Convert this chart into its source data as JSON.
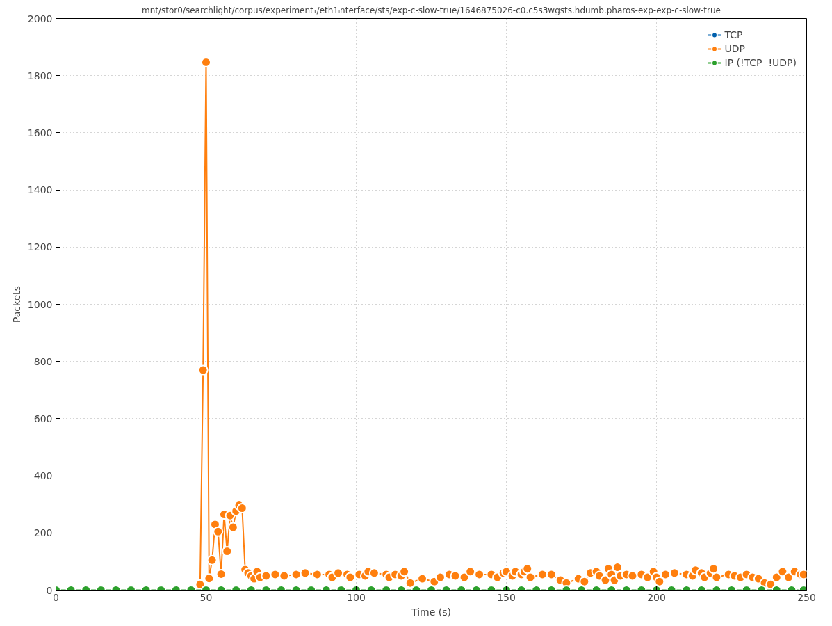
{
  "chart_data": {
    "type": "line",
    "title": "mnt/stor0/searchlight/corpus/experiment₁/eth1ᵢnterface/sts/exp-c-slow-true/1646875026-c0.c5s3wgsts.hdumb.pharos-exp-exp-c-slow-true",
    "xlabel": "Time (s)",
    "ylabel": "Packets",
    "xlim": [
      0,
      250
    ],
    "ylim": [
      0,
      2000
    ],
    "xticks": [
      0,
      50,
      100,
      150,
      200,
      250
    ],
    "yticks": [
      0,
      200,
      400,
      600,
      800,
      1000,
      1200,
      1400,
      1600,
      1800,
      2000
    ],
    "grid": true,
    "legend": "top right",
    "marker": "circle",
    "line_style": "solid",
    "series": [
      {
        "name": "TCP",
        "color": "#0060ad"
      },
      {
        "name": "UDP",
        "color": "#ff7f0e",
        "x": [
          48,
          49,
          50,
          51,
          52,
          53,
          54,
          55,
          56,
          57,
          58,
          59,
          60,
          61,
          62,
          63,
          64,
          65,
          66,
          67,
          68,
          70,
          73,
          76,
          80,
          83,
          87,
          91,
          92,
          94,
          97,
          98,
          101,
          103,
          104,
          106,
          110,
          111,
          113,
          115,
          116,
          118,
          122,
          126,
          128,
          131,
          133,
          136,
          138,
          141,
          145,
          147,
          149,
          150,
          152,
          153,
          155,
          156,
          157,
          158,
          162,
          165,
          168,
          170,
          174,
          176,
          178,
          180,
          181,
          183,
          184,
          185,
          186,
          187,
          188,
          190,
          192,
          195,
          197,
          199,
          200,
          201,
          203,
          206,
          210,
          212,
          213,
          215,
          216,
          218,
          219,
          220,
          224,
          226,
          228,
          230,
          232,
          234,
          236,
          238,
          240,
          242,
          244,
          246,
          248,
          249
        ],
        "values": [
          20,
          770,
          1847,
          41,
          105,
          230,
          205,
          56,
          265,
          136,
          261,
          220,
          277,
          297,
          287,
          72,
          60,
          50,
          40,
          65,
          45,
          50,
          55,
          50,
          55,
          60,
          55,
          55,
          45,
          60,
          55,
          45,
          55,
          50,
          65,
          60,
          55,
          45,
          55,
          50,
          65,
          25,
          40,
          30,
          45,
          55,
          50,
          45,
          65,
          55,
          55,
          45,
          60,
          65,
          50,
          65,
          55,
          65,
          75,
          45,
          55,
          55,
          35,
          25,
          40,
          30,
          60,
          65,
          50,
          35,
          75,
          55,
          35,
          80,
          50,
          55,
          50,
          55,
          45,
          65,
          45,
          30,
          55,
          60,
          55,
          50,
          70,
          60,
          45,
          60,
          75,
          45,
          55,
          50,
          45,
          55,
          45,
          40,
          25,
          20,
          45,
          65,
          45,
          65,
          55,
          55
        ]
      },
      {
        "name": "IP (!TCP  !UDP)",
        "color": "#2ca02c",
        "x": [
          0,
          5,
          10,
          15,
          20,
          25,
          30,
          35,
          40,
          45,
          50,
          55,
          60,
          65,
          70,
          75,
          80,
          85,
          90,
          95,
          100,
          105,
          110,
          115,
          120,
          125,
          130,
          135,
          140,
          145,
          150,
          155,
          160,
          165,
          170,
          175,
          180,
          185,
          190,
          195,
          200,
          205,
          210,
          215,
          220,
          225,
          230,
          235,
          240,
          245,
          249
        ],
        "values": [
          0,
          0,
          0,
          0,
          0,
          0,
          0,
          0,
          0,
          0,
          0,
          0,
          0,
          0,
          0,
          0,
          0,
          0,
          0,
          0,
          0,
          0,
          0,
          0,
          0,
          0,
          0,
          0,
          0,
          0,
          0,
          0,
          0,
          0,
          0,
          0,
          0,
          0,
          0,
          0,
          0,
          0,
          0,
          0,
          0,
          0,
          0,
          0,
          0,
          0,
          0
        ]
      }
    ]
  }
}
